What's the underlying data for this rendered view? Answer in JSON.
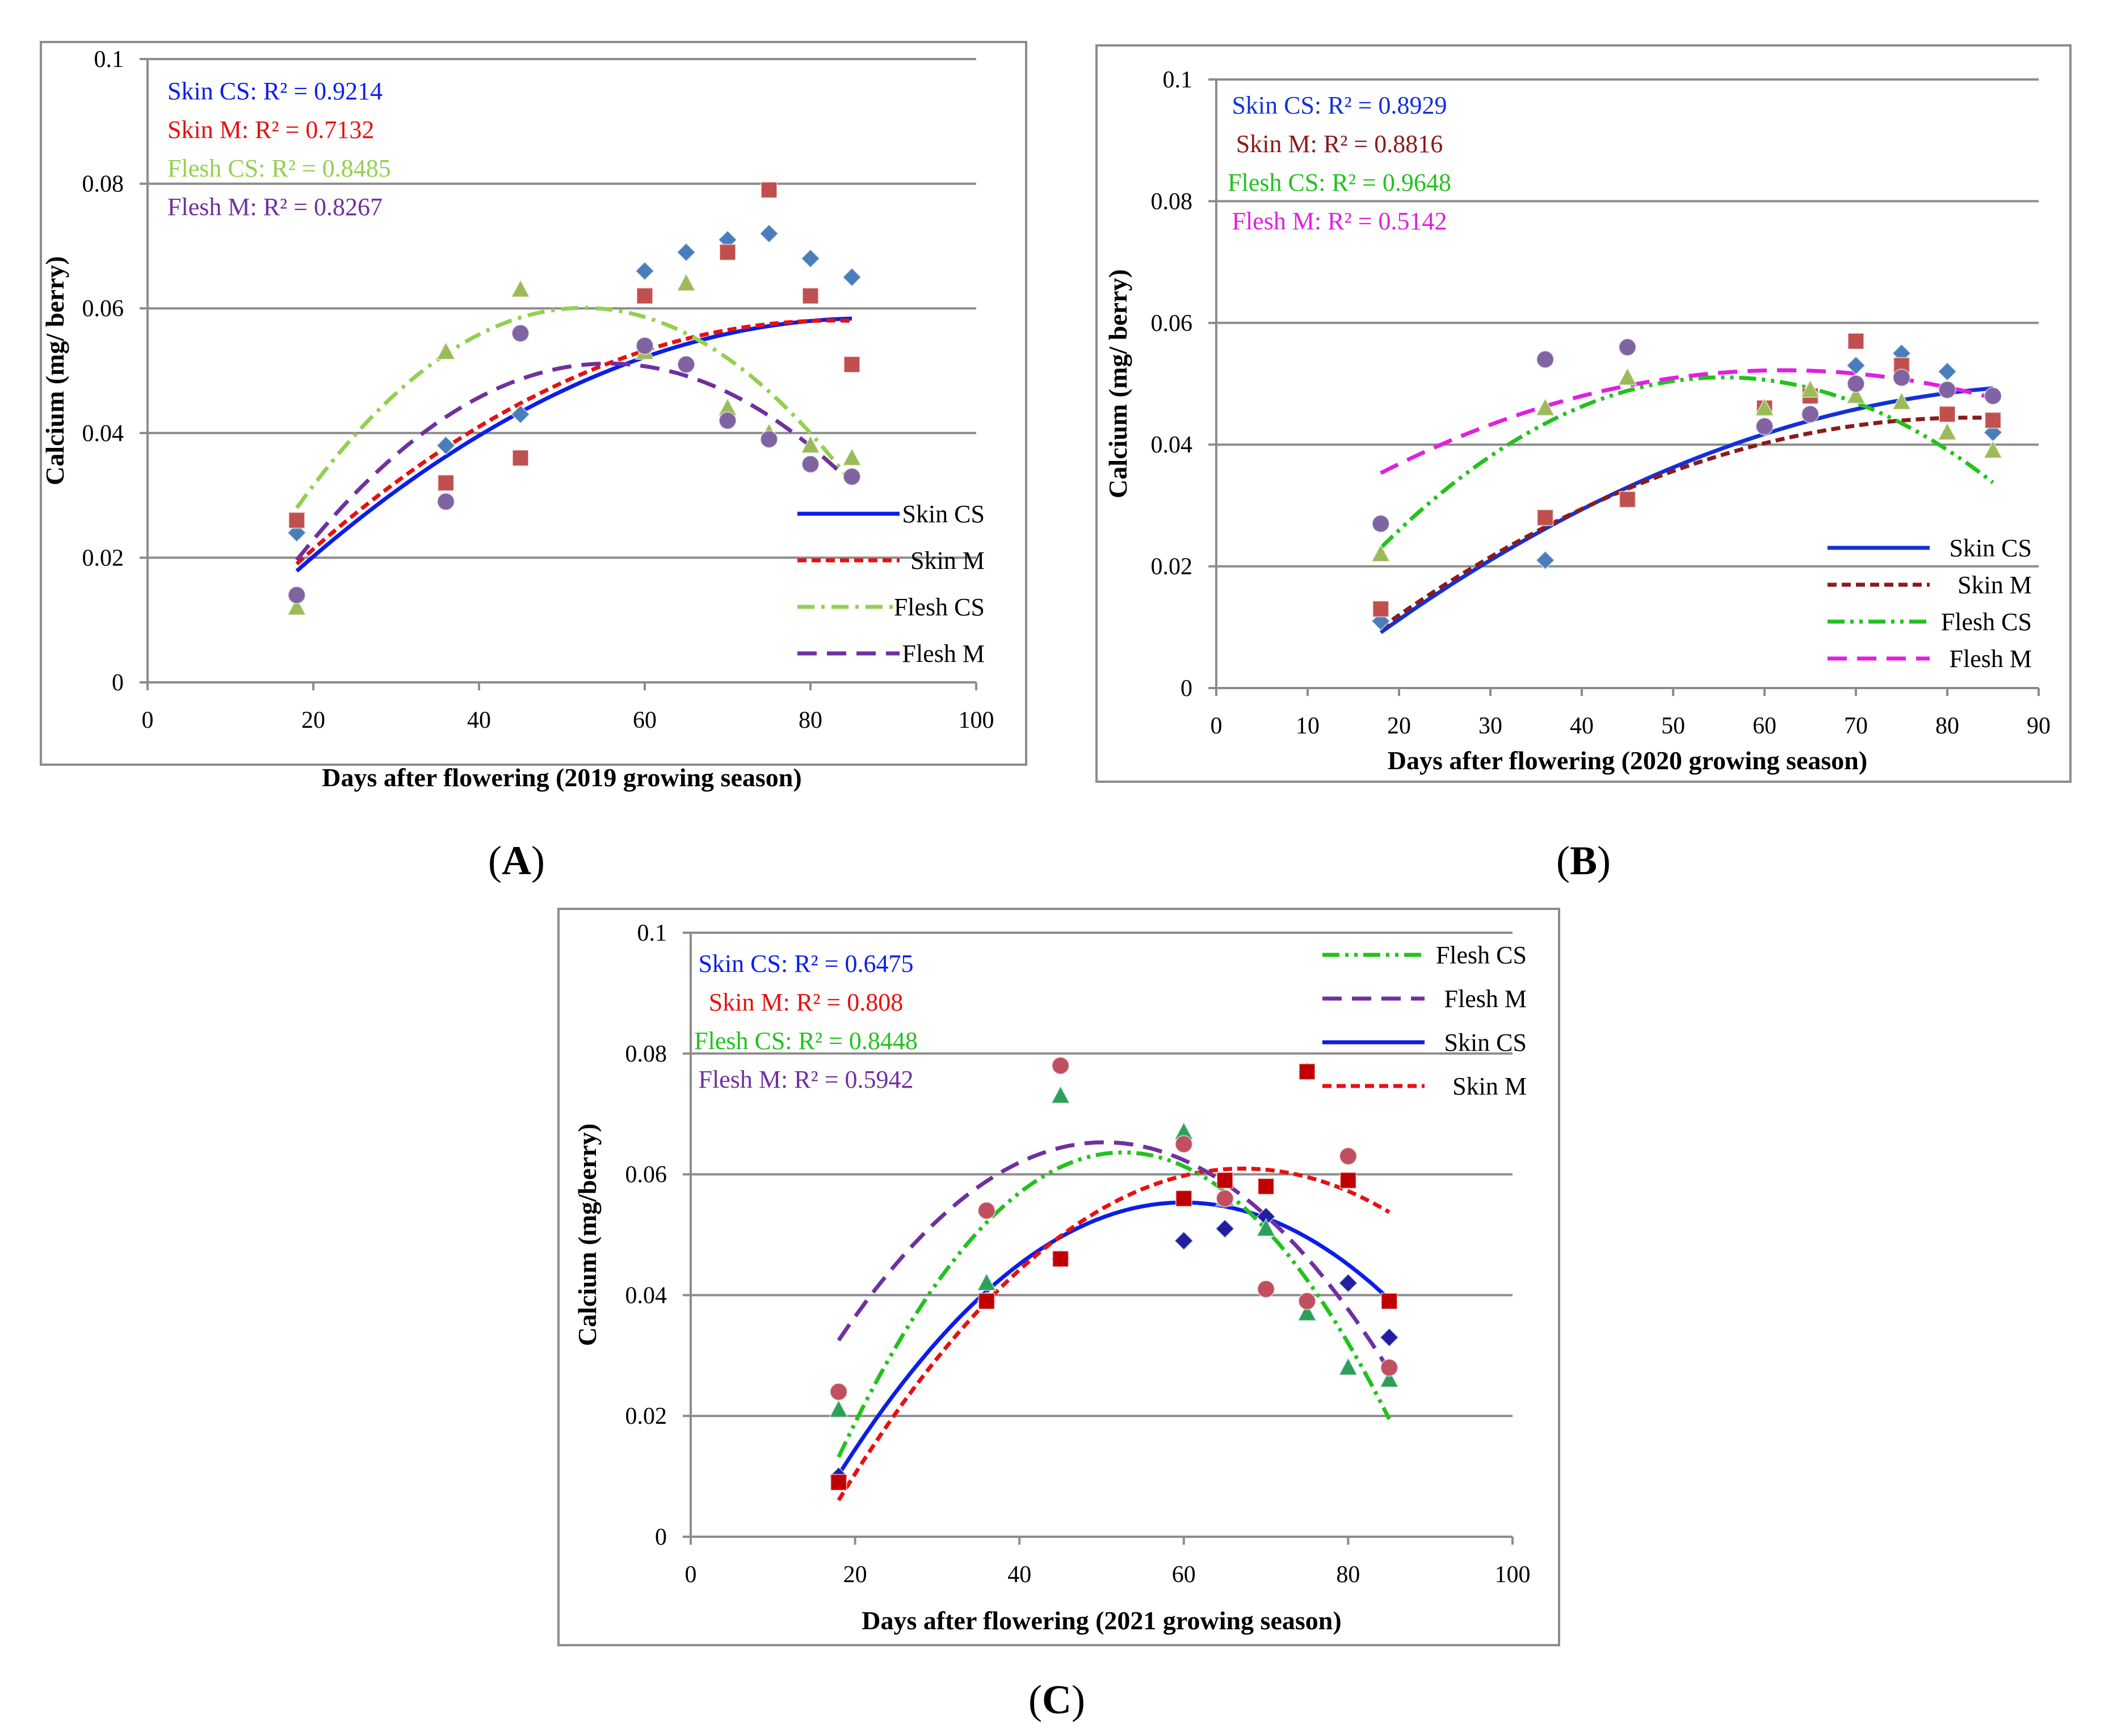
{
  "figure_labels": {
    "A": "A",
    "B": "B",
    "C": "C"
  },
  "chart_data": [
    {
      "panel": "A",
      "type": "scatter",
      "title": "",
      "xlabel": "Days after flowering (2019 growing season)",
      "ylabel": "Calcium (mg/ berry)",
      "xlim": [
        0,
        100
      ],
      "ylim": [
        0,
        0.1
      ],
      "xticks": [
        "0",
        "20",
        "40",
        "60",
        "80",
        "100"
      ],
      "yticks": [
        "0",
        "0.02",
        "0.04",
        "0.06",
        "0.08",
        "0.1"
      ],
      "grid": true,
      "legend_position": "bottom-right",
      "legend_order": [
        0,
        1,
        2,
        3
      ],
      "annotations": [
        "Skin CS: R² = 0.9214",
        "Skin  M: R² = 0.7132",
        "Flesh CS: R² = 0.8485",
        "Flesh  M: R² = 0.8267"
      ],
      "series": [
        {
          "name": "Skin CS",
          "color": "#4a7ebb",
          "marker": "diamond",
          "line_color": "#0b1ee8",
          "dash": "solid",
          "x": [
            18,
            36,
            45,
            60,
            65,
            70,
            75,
            80,
            85
          ],
          "values": [
            0.024,
            0.038,
            0.043,
            0.066,
            0.069,
            0.071,
            0.072,
            0.068,
            0.065
          ],
          "fit_x": [
            18,
            85
          ],
          "fit": [
            -8.5e-06,
            0.00148,
            -0.00602
          ]
        },
        {
          "name": "Skin M",
          "color": "#c0504d",
          "marker": "square",
          "line_color": "#e81010",
          "dash": "short",
          "x": [
            18,
            36,
            45,
            60,
            70,
            75,
            80,
            85
          ],
          "values": [
            0.026,
            0.032,
            0.036,
            0.062,
            0.069,
            0.079,
            0.062,
            0.051
          ],
          "fit_x": [
            18,
            85
          ],
          "fit": [
            -9.3e-06,
            0.00154,
            -0.0057
          ]
        },
        {
          "name": "Flesh CS",
          "color": "#9bbb59",
          "marker": "triangle",
          "line_color": "#92d050",
          "dash": "dashdot",
          "x": [
            18,
            36,
            45,
            60,
            65,
            70,
            75,
            80,
            85
          ],
          "values": [
            0.012,
            0.053,
            0.063,
            0.053,
            0.064,
            0.044,
            0.04,
            0.038,
            0.036
          ],
          "fit_x": [
            18,
            85
          ],
          "fit": [
            -2.68e-05,
            0.00282,
            -0.0141
          ]
        },
        {
          "name": "Flesh M",
          "color": "#8064a2",
          "marker": "circle",
          "line_color": "#7030a0",
          "dash": "long",
          "x": [
            18,
            36,
            45,
            60,
            65,
            70,
            75,
            80,
            85
          ],
          "values": [
            0.014,
            0.029,
            0.056,
            0.054,
            0.051,
            0.042,
            0.039,
            0.035,
            0.033
          ],
          "fit_x": [
            18,
            85
          ],
          "fit": [
            -2.23e-05,
            0.00248,
            -0.0178
          ]
        }
      ]
    },
    {
      "panel": "B",
      "type": "scatter",
      "title": "",
      "xlabel": "Days after flowering (2020 growing season)",
      "ylabel": "Calcium (mg/ berry)",
      "xlim": [
        0,
        90
      ],
      "ylim": [
        0,
        0.1
      ],
      "xticks": [
        "0",
        "10",
        "20",
        "30",
        "40",
        "50",
        "60",
        "70",
        "80",
        "90"
      ],
      "yticks": [
        "0",
        "0.02",
        "0.04",
        "0.06",
        "0.08",
        "0.1"
      ],
      "grid": true,
      "legend_position": "bottom-right",
      "legend_order": [
        0,
        1,
        2,
        3
      ],
      "annotations": [
        "Skin CS: R² = 0.8929",
        "Skin M: R² = 0.8816",
        "Flesh CS: R² = 0.9648",
        "Flesh M: R² = 0.5142"
      ],
      "series": [
        {
          "name": "Skin CS",
          "color": "#4a7ebb",
          "marker": "diamond",
          "line_color": "#1430d8",
          "dash": "solid",
          "x": [
            18,
            36,
            45,
            60,
            65,
            70,
            75,
            80,
            85
          ],
          "values": [
            0.011,
            0.021,
            0.031,
            0.043,
            0.045,
            0.053,
            0.055,
            0.052,
            0.042
          ],
          "fit_x": [
            18,
            85
          ],
          "fit": [
            -7.1e-06,
            0.00133,
            -0.0125
          ]
        },
        {
          "name": "Skin M",
          "color": "#c0504d",
          "marker": "square",
          "line_color": "#8b1a1a",
          "dash": "short",
          "x": [
            18,
            36,
            45,
            60,
            65,
            70,
            75,
            80,
            85
          ],
          "values": [
            0.013,
            0.028,
            0.031,
            0.046,
            0.048,
            0.057,
            0.053,
            0.045,
            0.044
          ],
          "fit_x": [
            18,
            85
          ],
          "fit": [
            -8.3e-06,
            0.00137,
            -0.0121
          ]
        },
        {
          "name": "Flesh CS",
          "color": "#9bbb59",
          "marker": "triangle",
          "line_color": "#22c21c",
          "dash": "dashdotdot",
          "x": [
            18,
            36,
            45,
            60,
            65,
            70,
            75,
            80,
            85
          ],
          "values": [
            0.022,
            0.046,
            0.051,
            0.046,
            0.049,
            0.048,
            0.047,
            0.042,
            0.039
          ],
          "fit_x": [
            18,
            85
          ],
          "fit": [
            -1.99e-05,
            0.00221,
            -0.0103
          ]
        },
        {
          "name": "Flesh M",
          "color": "#8064a2",
          "marker": "circle",
          "line_color": "#e020e0",
          "dash": "long",
          "x": [
            18,
            36,
            45,
            60,
            65,
            70,
            75,
            80,
            85
          ],
          "values": [
            0.027,
            0.054,
            0.056,
            0.043,
            0.045,
            0.05,
            0.051,
            0.049,
            0.048
          ],
          "fit_x": [
            18,
            85
          ],
          "fit": [
            -8.7e-06,
            0.00108,
            0.0187
          ]
        }
      ]
    },
    {
      "panel": "C",
      "type": "scatter",
      "title": "",
      "xlabel": "Days after flowering (2021 growing season)",
      "ylabel": "Calcium (mg/berry)",
      "xlim": [
        0,
        100
      ],
      "ylim": [
        0,
        0.1
      ],
      "xticks": [
        "0",
        "20",
        "40",
        "60",
        "80",
        "100"
      ],
      "yticks": [
        "0",
        "0.02",
        "0.04",
        "0.06",
        "0.08",
        "0.1"
      ],
      "grid": true,
      "legend_position": "top-right",
      "legend_order": [
        2,
        3,
        0,
        1
      ],
      "annotations": [
        "Skin CS: R² = 0.6475",
        "Skin  M: R² = 0.808",
        "Flesh CS: R² = 0.8448",
        "Flesh M: R² = 0.5942"
      ],
      "series": [
        {
          "name": "Skin CS",
          "color": "#1f1fa0",
          "marker": "diamond",
          "line_color": "#0b1ee8",
          "dash": "solid",
          "x": [
            18,
            36,
            45,
            60,
            65,
            70,
            75,
            80,
            85
          ],
          "values": [
            0.01,
            0.039,
            0.046,
            0.049,
            0.051,
            0.053,
            0.077,
            0.042,
            0.033
          ],
          "fit_x": [
            18,
            85
          ],
          "fit": [
            -2.56e-05,
            0.00307,
            -0.0367
          ]
        },
        {
          "name": "Skin M",
          "color": "#c00000",
          "marker": "square",
          "line_color": "#e81010",
          "dash": "short",
          "x": [
            18,
            36,
            45,
            60,
            65,
            70,
            75,
            80,
            85
          ],
          "values": [
            0.009,
            0.039,
            0.046,
            0.056,
            0.059,
            0.058,
            0.077,
            0.059,
            0.039
          ],
          "fit_x": [
            18,
            85
          ],
          "fit": [
            -2.27e-05,
            0.00305,
            -0.0415
          ]
        },
        {
          "name": "Flesh CS",
          "color": "#2ca05a",
          "marker": "triangle",
          "line_color": "#22c21c",
          "dash": "dashdotdot",
          "x": [
            18,
            36,
            45,
            60,
            65,
            70,
            75,
            80,
            85
          ],
          "values": [
            0.021,
            0.042,
            0.073,
            0.067,
            0.056,
            0.051,
            0.037,
            0.028,
            0.026
          ],
          "fit_x": [
            18,
            85
          ],
          "fit": [
            -4.21e-05,
            0.00443,
            -0.0529
          ]
        },
        {
          "name": "Flesh M",
          "color": "#c05060",
          "marker": "circle",
          "line_color": "#7030a0",
          "dash": "long",
          "x": [
            18,
            36,
            45,
            60,
            65,
            70,
            75,
            80,
            85
          ],
          "values": [
            0.024,
            0.054,
            0.078,
            0.065,
            0.056,
            0.041,
            0.039,
            0.063,
            0.028
          ],
          "fit_x": [
            18,
            85
          ],
          "fit": [
            -3.14e-05,
            0.00316,
            -0.0142
          ]
        }
      ]
    }
  ]
}
